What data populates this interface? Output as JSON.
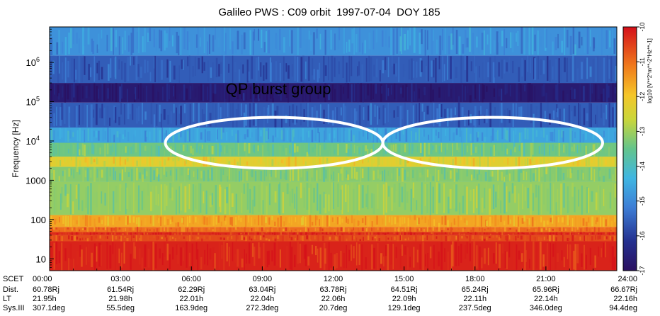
{
  "chart_data": {
    "type": "heatmap",
    "title": "Galileo PWS : C09 orbit  1997-07-04  DOY 185",
    "ylabel": "Frequency [Hz]",
    "y_scale": "log",
    "ylim": [
      5,
      8000000
    ],
    "y_ticks": [
      {
        "value": 10,
        "label": "10"
      },
      {
        "value": 100,
        "label": "100"
      },
      {
        "value": 1000,
        "label": "1000"
      },
      {
        "value": 10000,
        "label": "10^4",
        "base": "10",
        "exp": "4"
      },
      {
        "value": 100000,
        "label": "10^5",
        "base": "10",
        "exp": "5"
      },
      {
        "value": 1000000,
        "label": "10^6",
        "base": "10",
        "exp": "6"
      }
    ],
    "x_hours": [
      0,
      3,
      6,
      9,
      12,
      15,
      18,
      21,
      24
    ],
    "row_labels": {
      "scet": "SCET",
      "dist": "Dist.",
      "lt": "LT",
      "sys": "Sys.III"
    },
    "columns": [
      {
        "scet": "00:00",
        "dist": "60.78Rj",
        "lt": "21.95h",
        "sys": "307.1deg"
      },
      {
        "scet": "03:00",
        "dist": "61.54Rj",
        "lt": "21.98h",
        "sys": "55.5deg"
      },
      {
        "scet": "06:00",
        "dist": "62.29Rj",
        "lt": "22.01h",
        "sys": "163.9deg"
      },
      {
        "scet": "09:00",
        "dist": "63.04Rj",
        "lt": "22.04h",
        "sys": "272.3deg"
      },
      {
        "scet": "12:00",
        "dist": "63.78Rj",
        "lt": "22.06h",
        "sys": "20.7deg"
      },
      {
        "scet": "15:00",
        "dist": "64.51Rj",
        "lt": "22.09h",
        "sys": "129.1deg"
      },
      {
        "scet": "18:00",
        "dist": "65.24Rj",
        "lt": "22.11h",
        "sys": "237.5deg"
      },
      {
        "scet": "21:00",
        "dist": "65.96Rj",
        "lt": "22.14h",
        "sys": "346.0deg"
      },
      {
        "scet": "24:00",
        "dist": "66.67Rj",
        "lt": "22.16h",
        "sys": "94.4deg"
      }
    ],
    "colorbar": {
      "label": "log10 [V**2*m**-2*Hz**-1]",
      "range": [
        -17,
        -10
      ],
      "ticks": [
        {
          "value": -17,
          "label": "-17"
        },
        {
          "value": -16,
          "label": "-16"
        },
        {
          "value": -15,
          "label": "-15"
        },
        {
          "value": -14,
          "label": "-14"
        },
        {
          "value": -13,
          "label": "-13"
        },
        {
          "value": -12,
          "label": "-12"
        },
        {
          "value": -11,
          "label": "-11"
        },
        {
          "value": -10,
          "label": "-10"
        }
      ]
    },
    "annotation": {
      "text": "QP burst group",
      "ellipses": [
        {
          "x_hour_start": 4.9,
          "x_hour_end": 14.1,
          "f_low": 2000,
          "f_high": 40000
        },
        {
          "x_hour_start": 14.1,
          "x_hour_end": 23.4,
          "f_low": 2000,
          "f_high": 40000
        }
      ]
    },
    "bands": [
      {
        "f_low": 5,
        "f_high": 28,
        "level": -10.2
      },
      {
        "f_low": 28,
        "f_high": 40,
        "level": -10.6
      },
      {
        "f_low": 40,
        "f_high": 48,
        "level": -10.3
      },
      {
        "f_low": 48,
        "f_high": 65,
        "level": -11.0
      },
      {
        "f_low": 65,
        "f_high": 130,
        "level": -11.6
      },
      {
        "f_low": 130,
        "f_high": 900,
        "level": -13.1
      },
      {
        "f_low": 900,
        "f_high": 2200,
        "level": -13.2
      },
      {
        "f_low": 2200,
        "f_high": 4000,
        "level": -12.3
      },
      {
        "f_low": 4000,
        "f_high": 9000,
        "level": -13.4
      },
      {
        "f_low": 9000,
        "f_high": 22000,
        "level": -14.6
      },
      {
        "f_low": 22000,
        "f_high": 95000,
        "level": -15.6
      },
      {
        "f_low": 95000,
        "f_high": 300000,
        "level": -16.7
      },
      {
        "f_low": 300000,
        "f_high": 1500000,
        "level": -15.6
      },
      {
        "f_low": 1500000,
        "f_high": 8000000,
        "level": -14.9
      }
    ]
  }
}
